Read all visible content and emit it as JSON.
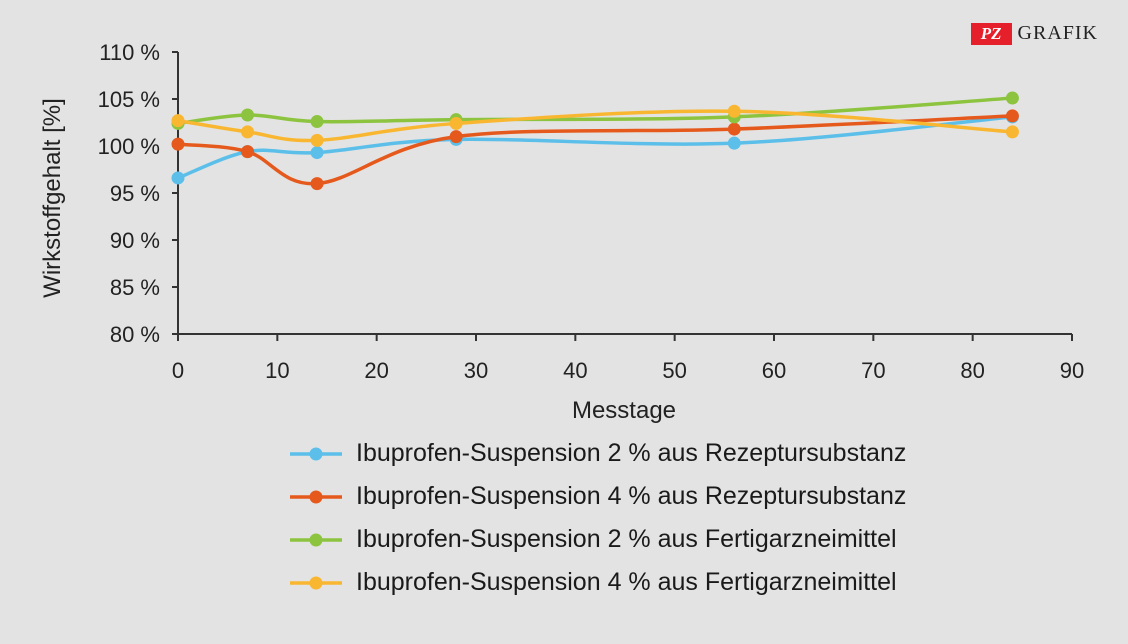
{
  "brand": {
    "mark": "PZ",
    "word": "GRAFIK"
  },
  "chart_data": {
    "type": "line",
    "xlabel": "Messtage",
    "ylabel": "Wirkstoffgehalt [%]",
    "xlim": [
      0,
      90
    ],
    "ylim": [
      80,
      110
    ],
    "xticks": [
      "0",
      "10",
      "20",
      "30",
      "40",
      "50",
      "60",
      "70",
      "80",
      "90"
    ],
    "yticks": [
      "80 %",
      "85 %",
      "90 %",
      "95 %",
      "100 %",
      "105 %",
      "110 %"
    ],
    "grid": false,
    "legend_position": "bottom",
    "series": [
      {
        "name": "Ibuprofen-Suspension 2 % aus Rezeptursubstanz",
        "color": "#5bbfea",
        "x": [
          0,
          7,
          14,
          28,
          56,
          84
        ],
        "y": [
          96.6,
          99.4,
          99.3,
          100.7,
          100.3,
          103.1
        ]
      },
      {
        "name": "Ibuprofen-Suspension 4 % aus Rezeptursubstanz",
        "color": "#e55a1c",
        "x": [
          0,
          7,
          14,
          28,
          56,
          84
        ],
        "y": [
          100.2,
          99.4,
          96.0,
          101.0,
          101.8,
          103.2
        ]
      },
      {
        "name": "Ibuprofen-Suspension 2 % aus Fertigarzneimittel",
        "color": "#8dc43f",
        "x": [
          0,
          7,
          14,
          28,
          56,
          84
        ],
        "y": [
          102.4,
          103.3,
          102.6,
          102.8,
          103.1,
          105.1
        ]
      },
      {
        "name": "Ibuprofen-Suspension 4 % aus Fertigarzneimittel",
        "color": "#f9b731",
        "x": [
          0,
          7,
          14,
          28,
          56,
          84
        ],
        "y": [
          102.7,
          101.5,
          100.6,
          102.4,
          103.7,
          101.5
        ]
      }
    ]
  }
}
